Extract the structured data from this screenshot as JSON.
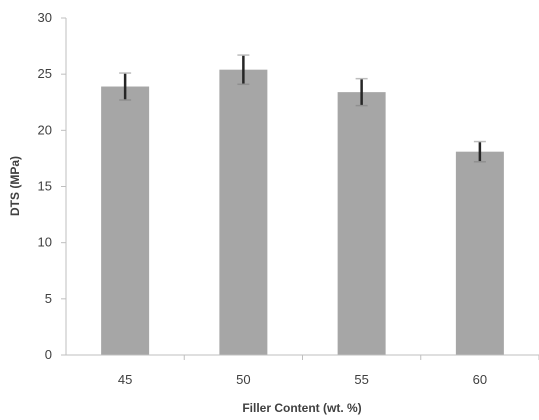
{
  "chart_data": {
    "type": "bar",
    "title": "",
    "xlabel": "Filler Content (wt. %)",
    "ylabel": "DTS (MPa)",
    "categories": [
      "45",
      "50",
      "55",
      "60"
    ],
    "series": [
      {
        "values": [
          23.9,
          25.4,
          23.4,
          18.1
        ],
        "error": [
          1.2,
          1.3,
          1.2,
          0.9
        ]
      }
    ],
    "ylim": [
      0,
      30
    ],
    "yticks": [
      0,
      5,
      10,
      15,
      20,
      25,
      30
    ],
    "grid": false,
    "legend": "none",
    "bar_color": "#a6a6a6",
    "error_color": "#262626",
    "axis_color": "#bfbfbf"
  }
}
